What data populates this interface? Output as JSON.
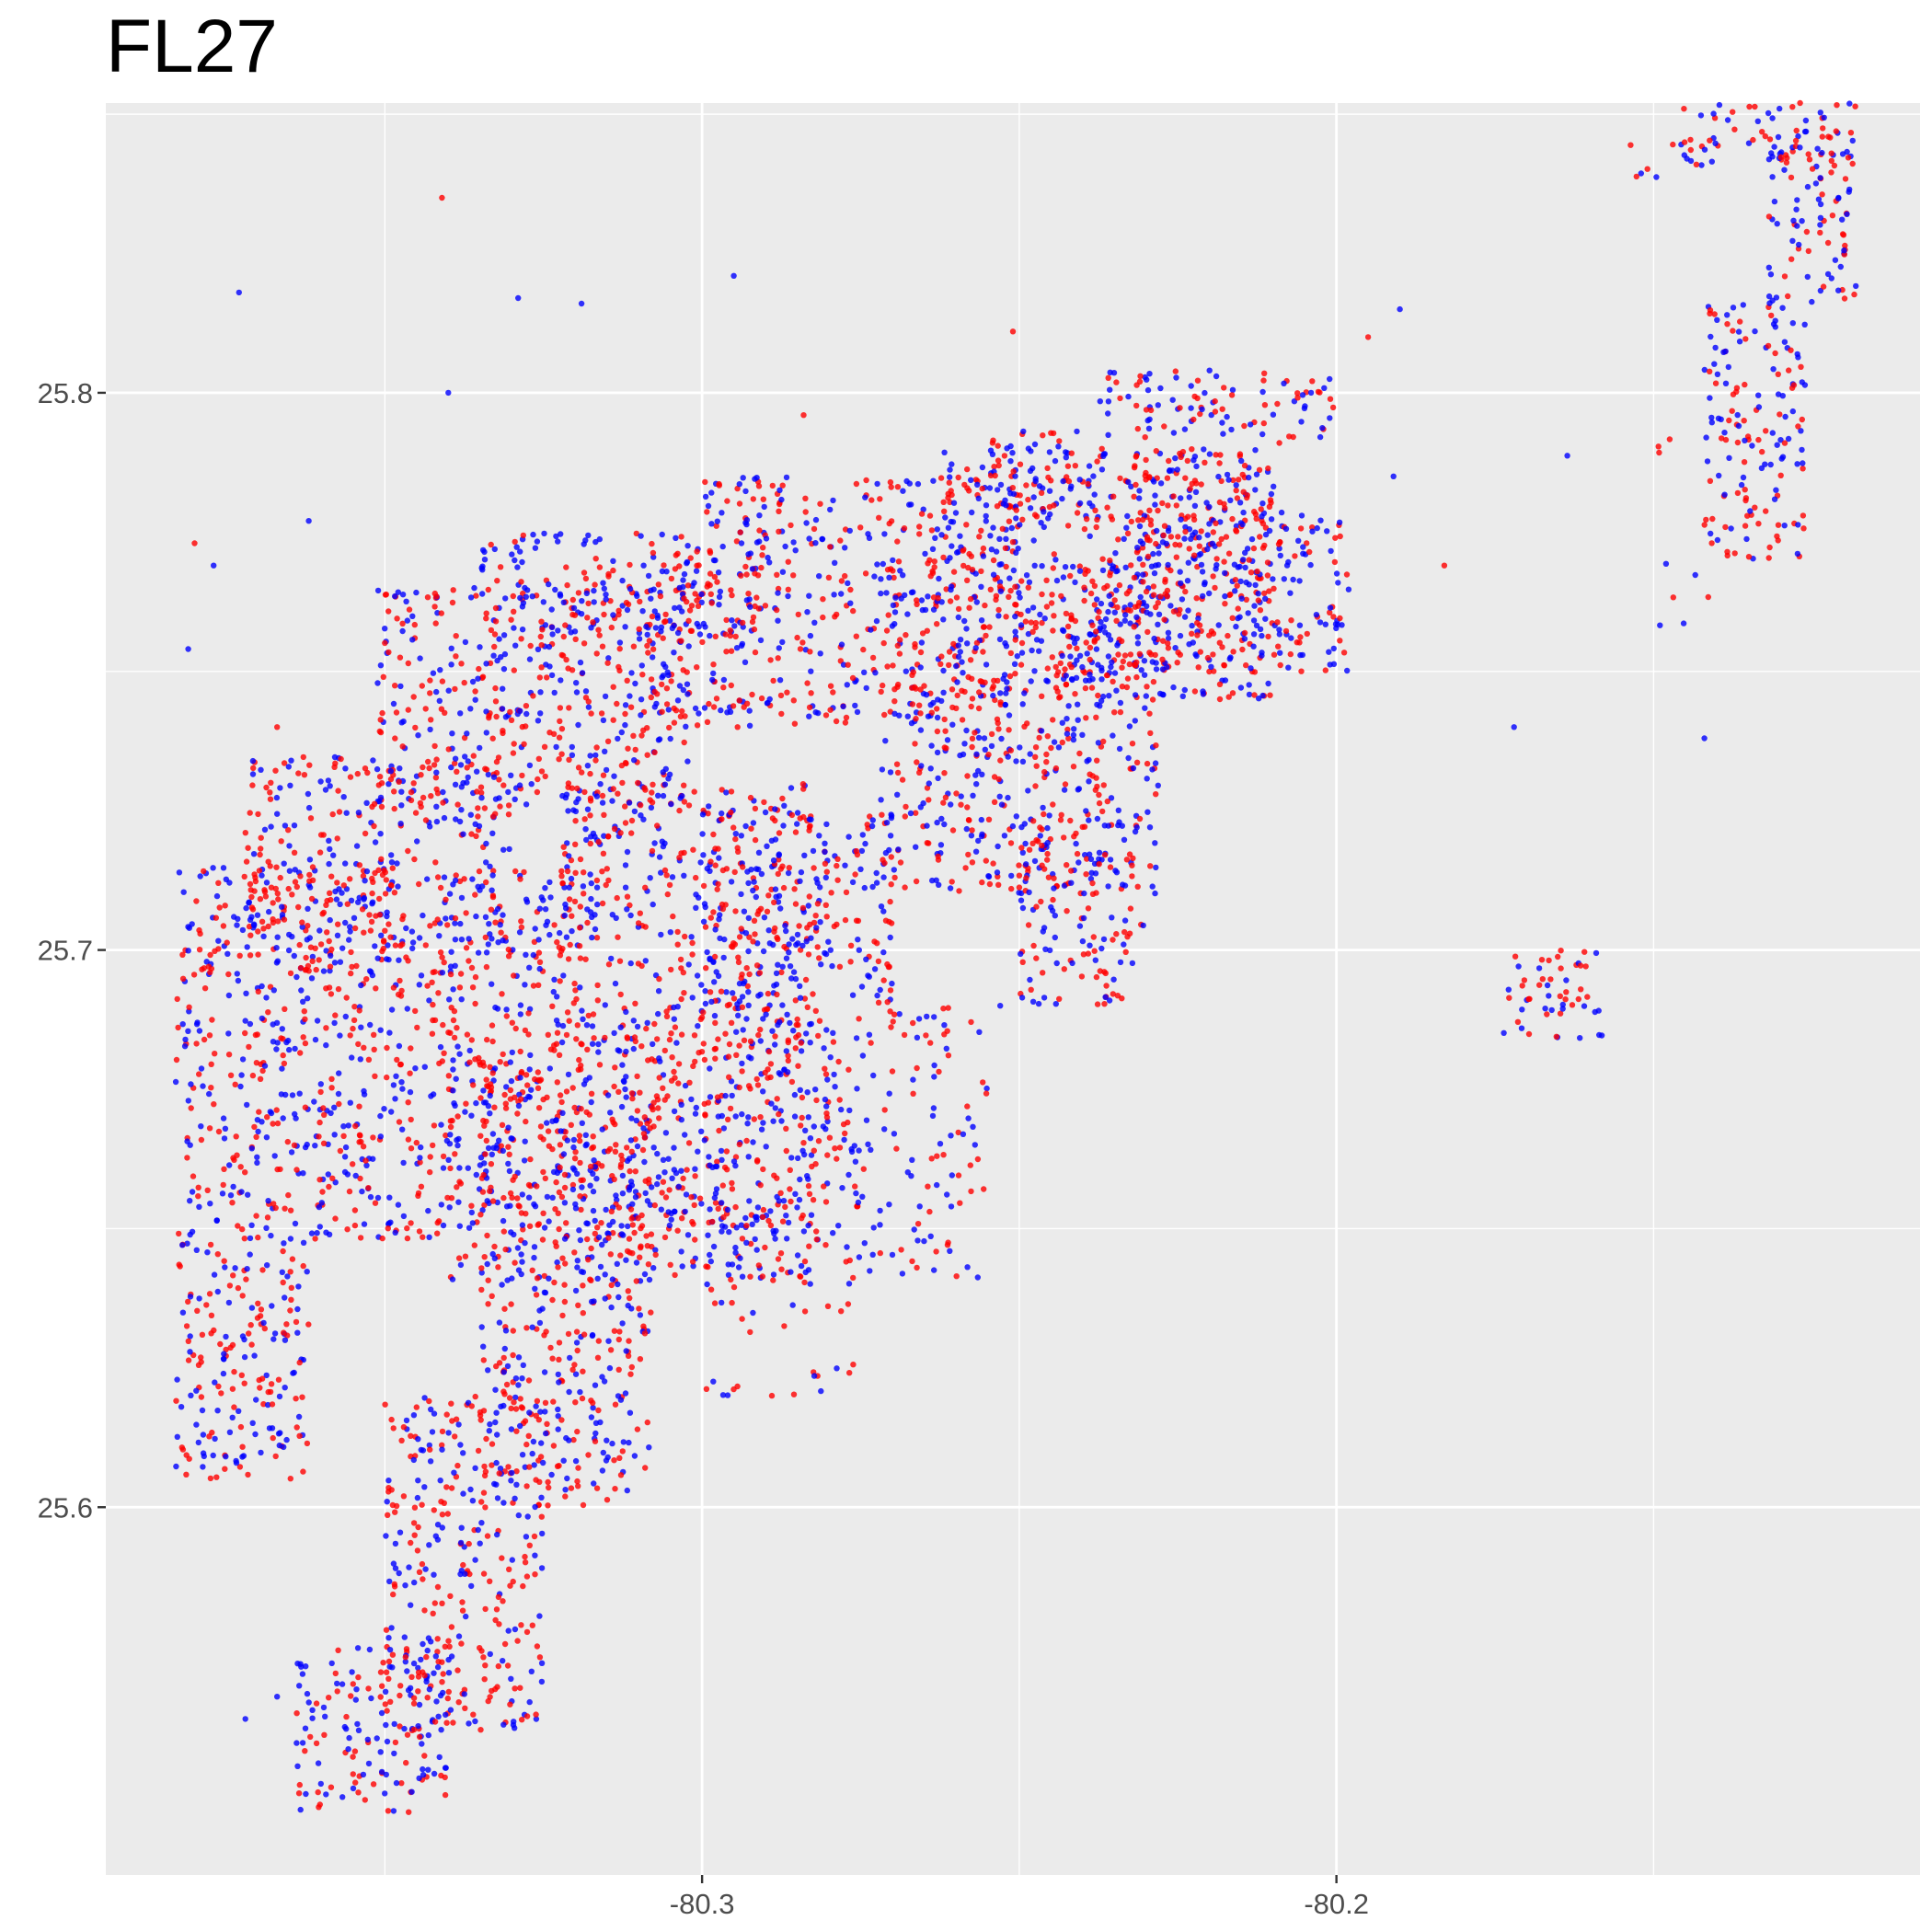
{
  "chart_data": {
    "type": "scatter",
    "title": "FL27",
    "xlabel": "",
    "ylabel": "",
    "xlim": [
      -80.394,
      -80.108
    ],
    "ylim": [
      25.534,
      25.852
    ],
    "x_ticks": [
      {
        "value": -80.3,
        "label": "-80.3"
      },
      {
        "value": -80.2,
        "label": "-80.2"
      }
    ],
    "y_ticks": [
      {
        "value": 25.6,
        "label": "25.6"
      },
      {
        "value": 25.7,
        "label": "25.7"
      },
      {
        "value": 25.8,
        "label": "25.8"
      }
    ],
    "x_minor_gridlines": [
      -80.35,
      -80.25,
      -80.15
    ],
    "y_minor_gridlines": [
      25.65,
      25.75,
      25.85
    ],
    "grid": true,
    "legend": "none",
    "background": "#ebebeb",
    "gridline_color": "#ffffff",
    "series": [
      {
        "color": "#ff0000"
      },
      {
        "color": "#0000ff"
      }
    ],
    "regions": [
      {
        "x": [
          -80.383,
          -80.362
        ],
        "y": [
          25.605,
          25.648
        ],
        "density": "high"
      },
      {
        "x": [
          -80.383,
          -80.338
        ],
        "y": [
          25.648,
          25.7
        ],
        "density": "high"
      },
      {
        "x": [
          -80.383,
          -80.348
        ],
        "y": [
          25.7,
          25.716
        ],
        "density": "high"
      },
      {
        "x": [
          -80.372,
          -80.33
        ],
        "y": [
          25.7,
          25.735
        ],
        "density": "high"
      },
      {
        "x": [
          -80.34,
          -80.318
        ],
        "y": [
          25.64,
          25.715
        ],
        "density": "high"
      },
      {
        "x": [
          -80.364,
          -80.34
        ],
        "y": [
          25.545,
          25.575
        ],
        "density": "high"
      },
      {
        "x": [
          -80.35,
          -80.325
        ],
        "y": [
          25.56,
          25.62
        ],
        "density": "high"
      },
      {
        "x": [
          -80.335,
          -80.308
        ],
        "y": [
          25.6,
          25.68
        ],
        "density": "high"
      },
      {
        "x": [
          -80.318,
          -80.283
        ],
        "y": [
          25.64,
          25.7
        ],
        "density": "high"
      },
      {
        "x": [
          -80.3,
          -80.27
        ],
        "y": [
          25.69,
          25.725
        ],
        "density": "high"
      },
      {
        "x": [
          -80.312,
          -80.28
        ],
        "y": [
          25.65,
          25.69
        ],
        "density": "medium"
      },
      {
        "x": [
          -80.322,
          -80.28
        ],
        "y": [
          25.7,
          25.73
        ],
        "density": "high"
      },
      {
        "x": [
          -80.352,
          -80.302
        ],
        "y": [
          25.725,
          25.765
        ],
        "density": "high"
      },
      {
        "x": [
          -80.335,
          -80.29
        ],
        "y": [
          25.755,
          25.775
        ],
        "density": "high"
      },
      {
        "x": [
          -80.308,
          -80.262
        ],
        "y": [
          25.74,
          25.77
        ],
        "density": "high"
      },
      {
        "x": [
          -80.3,
          -80.25
        ],
        "y": [
          25.77,
          25.785
        ],
        "density": "high"
      },
      {
        "x": [
          -80.272,
          -80.228
        ],
        "y": [
          25.71,
          25.77
        ],
        "density": "high"
      },
      {
        "x": [
          -80.262,
          -80.21
        ],
        "y": [
          25.745,
          25.79
        ],
        "density": "high"
      },
      {
        "x": [
          -80.256,
          -80.238
        ],
        "y": [
          25.776,
          25.794
        ],
        "density": "high"
      },
      {
        "x": [
          -80.232,
          -80.208
        ],
        "y": [
          25.77,
          25.79
        ],
        "density": "high"
      },
      {
        "x": [
          -80.242,
          -80.198
        ],
        "y": [
          25.75,
          25.778
        ],
        "density": "high"
      },
      {
        "x": [
          -80.238,
          -80.2
        ],
        "y": [
          25.792,
          25.804
        ],
        "density": "high"
      },
      {
        "x": [
          -80.25,
          -80.23
        ],
        "y": [
          25.69,
          25.72
        ],
        "density": "high"
      },
      {
        "x": [
          -80.285,
          -80.255
        ],
        "y": [
          25.64,
          25.69
        ],
        "density": "medium"
      },
      {
        "x": [
          -80.3,
          -80.275
        ],
        "y": [
          25.62,
          25.65
        ],
        "density": "low"
      },
      {
        "x": [
          -80.142,
          -80.126
        ],
        "y": [
          25.77,
          25.816
        ],
        "density": "high"
      },
      {
        "x": [
          -80.132,
          -80.118
        ],
        "y": [
          25.816,
          25.848
        ],
        "density": "high"
      },
      {
        "x": [
          -80.146,
          -80.118
        ],
        "y": [
          25.842,
          25.852
        ],
        "density": "high"
      },
      {
        "x": [
          -80.155,
          -80.14
        ],
        "y": [
          25.838,
          25.846
        ],
        "density": "medium"
      },
      {
        "x": [
          -80.165,
          -80.146
        ],
        "y": [
          25.788,
          25.792
        ],
        "density": "low"
      },
      {
        "x": [
          -80.149,
          -80.14
        ],
        "y": [
          25.758,
          25.77
        ],
        "density": "low"
      },
      {
        "x": [
          -80.174,
          -80.158
        ],
        "y": [
          25.684,
          25.7
        ],
        "density": "high"
      }
    ],
    "outliers": [
      {
        "x": -80.341,
        "y": 25.835
      },
      {
        "x": -80.373,
        "y": 25.818
      },
      {
        "x": -80.295,
        "y": 25.821
      },
      {
        "x": -80.251,
        "y": 25.811
      },
      {
        "x": -80.329,
        "y": 25.817
      },
      {
        "x": -80.319,
        "y": 25.816
      },
      {
        "x": -80.284,
        "y": 25.796
      },
      {
        "x": -80.34,
        "y": 25.8
      },
      {
        "x": -80.362,
        "y": 25.777
      },
      {
        "x": -80.38,
        "y": 25.773
      },
      {
        "x": -80.377,
        "y": 25.769
      },
      {
        "x": -80.381,
        "y": 25.754
      },
      {
        "x": -80.367,
        "y": 25.74
      },
      {
        "x": -80.33,
        "y": 25.771
      },
      {
        "x": -80.172,
        "y": 25.74
      },
      {
        "x": -80.183,
        "y": 25.769
      },
      {
        "x": -80.142,
        "y": 25.738
      },
      {
        "x": -80.19,
        "y": 25.815
      },
      {
        "x": -80.195,
        "y": 25.81
      },
      {
        "x": -80.22,
        "y": 25.804
      },
      {
        "x": -80.204,
        "y": 25.8
      },
      {
        "x": -80.209,
        "y": 25.791
      },
      {
        "x": -80.191,
        "y": 25.785
      },
      {
        "x": -80.282,
        "y": 25.704
      },
      {
        "x": -80.212,
        "y": 25.761
      },
      {
        "x": -80.367,
        "y": 25.566
      },
      {
        "x": -80.372,
        "y": 25.562
      },
      {
        "x": -80.289,
        "y": 25.62
      },
      {
        "x": -80.253,
        "y": 25.69
      }
    ]
  }
}
